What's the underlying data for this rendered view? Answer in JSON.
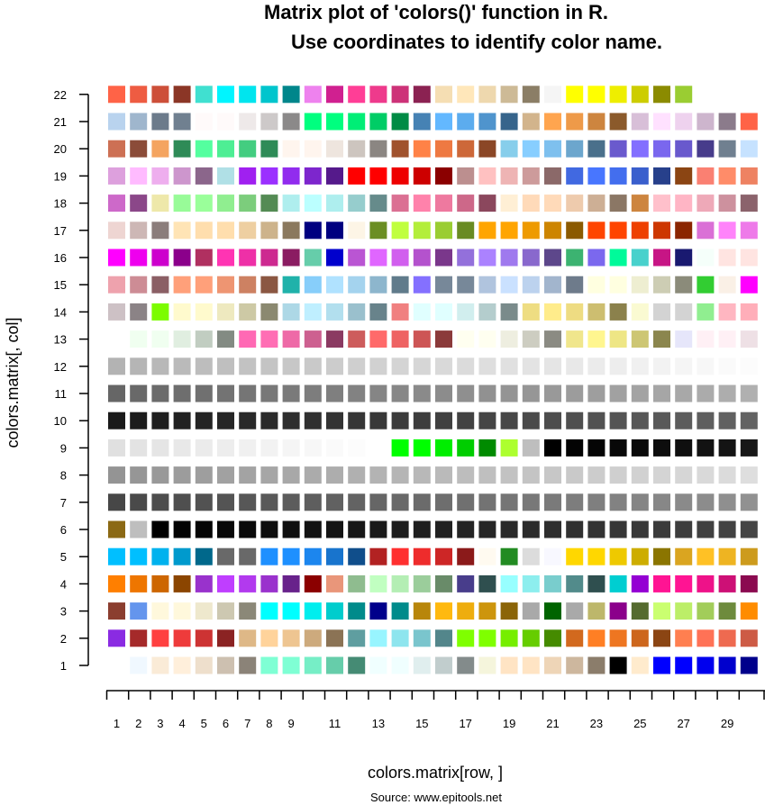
{
  "chart_data": {
    "type": "heatmap",
    "title_line1": "Matrix plot of 'colors()' function in R.",
    "title_line2": "Use coordinates to identify color name.",
    "xlabel": "colors.matrix[row, ]",
    "ylabel": "colors.matrix[, col]",
    "source": "Source: www.epitools.net",
    "x_range": [
      1,
      30
    ],
    "y_range": [
      1,
      22
    ],
    "x_tick_labels": [
      "1",
      "2",
      "3",
      "4",
      "5",
      "6",
      "7",
      "8",
      "9",
      "11",
      "13",
      "15",
      "17",
      "19",
      "21",
      "23",
      "25",
      "27",
      "29"
    ],
    "y_tick_labels": [
      "1",
      "2",
      "3",
      "4",
      "5",
      "6",
      "7",
      "8",
      "9",
      "10",
      "11",
      "12",
      "13",
      "14",
      "15",
      "16",
      "17",
      "18",
      "19",
      "20",
      "21",
      "22"
    ],
    "grid": false,
    "legend": "none",
    "rows": [
      {
        "y": 1,
        "colors": [
          "#FFFFFF",
          "#F0F8FF",
          "#FAEBD7",
          "#FFEFDB",
          "#EEDFCC",
          "#CDC0B0",
          "#8B8378",
          "#7FFFD4",
          "#7FFFD4",
          "#76EEC6",
          "#66CDAA",
          "#458B74",
          "#F0FFFF",
          "#F0FFFF",
          "#E0EEEE",
          "#C1CDCD",
          "#838B8B",
          "#F5F5DC",
          "#FFE4C4",
          "#FFE4C4",
          "#EED5B7",
          "#CDB79E",
          "#8B7D6B",
          "#000000",
          "#FFEBCD",
          "#0000FF",
          "#0000FF",
          "#0000EE",
          "#0000CD",
          "#00008B"
        ]
      },
      {
        "y": 2,
        "colors": [
          "#8A2BE2",
          "#A52A2A",
          "#FF4040",
          "#EE3B3B",
          "#CD3333",
          "#8B2323",
          "#DEB887",
          "#FFD39B",
          "#EEC591",
          "#CDAA7D",
          "#8B7355",
          "#5F9EA0",
          "#98F5FF",
          "#8EE5EE",
          "#7AC5CD",
          "#53868B",
          "#7FFF00",
          "#7FFF00",
          "#76EE00",
          "#66CD00",
          "#458B00",
          "#D2691E",
          "#FF7F24",
          "#EE7621",
          "#CD661D",
          "#8B4513",
          "#FF7F50",
          "#FF7256",
          "#EE6A50",
          "#CD5B45"
        ]
      },
      {
        "y": 3,
        "colors": [
          "#8B3E2F",
          "#6495ED",
          "#FFF8DC",
          "#FFF8DC",
          "#EEE8CD",
          "#CDC8B1",
          "#8B8878",
          "#00FFFF",
          "#00FFFF",
          "#00EEEE",
          "#00CDCD",
          "#008B8B",
          "#00008B",
          "#008B8B",
          "#B8860B",
          "#FFB90F",
          "#EEAD0E",
          "#CD950C",
          "#8B6508",
          "#A9A9A9",
          "#006400",
          "#A9A9A9",
          "#BDB76B",
          "#8B008B",
          "#556B2F",
          "#CAFF70",
          "#BCEE68",
          "#A2CD5A",
          "#6E8B3D",
          "#FF8C00"
        ]
      },
      {
        "y": 4,
        "colors": [
          "#FF7F00",
          "#EE7600",
          "#CD6600",
          "#8B4500",
          "#9932CC",
          "#BF3EFF",
          "#B23AEE",
          "#9A32CD",
          "#68228B",
          "#8B0000",
          "#E9967A",
          "#8FBC8F",
          "#C1FFC1",
          "#B4EEB4",
          "#9BCD9B",
          "#698B69",
          "#483D8B",
          "#2F4F4F",
          "#97FFFF",
          "#8DEEEE",
          "#79CDCD",
          "#528B8B",
          "#2F4F4F",
          "#00CED1",
          "#9400D3",
          "#FF1493",
          "#FF1493",
          "#EE1289",
          "#CD1076",
          "#8B0A50"
        ]
      },
      {
        "y": 5,
        "colors": [
          "#00BFFF",
          "#00BFFF",
          "#00B2EE",
          "#009ACD",
          "#00688B",
          "#696969",
          "#696969",
          "#1E90FF",
          "#1E90FF",
          "#1C86EE",
          "#1874CD",
          "#104E8B",
          "#B22222",
          "#FF3030",
          "#EE2C2C",
          "#CD2626",
          "#8B1A1A",
          "#FFFAF0",
          "#228B22",
          "#DCDCDC",
          "#F8F8FF",
          "#FFD700",
          "#FFD700",
          "#EEC900",
          "#CDAD00",
          "#8B7500",
          "#DAA520",
          "#FFC125",
          "#EEB422",
          "#CD9B1D"
        ]
      },
      {
        "y": 6,
        "colors": [
          "#8B6914",
          "#BEBEBE",
          "#000000",
          "#030303",
          "#050505",
          "#080808",
          "#0A0A0A",
          "#0D0D0D",
          "#0F0F0F",
          "#121212",
          "#141414",
          "#171717",
          "#1A1A1A",
          "#1C1C1C",
          "#1F1F1F",
          "#212121",
          "#242424",
          "#262626",
          "#292929",
          "#2B2B2B",
          "#2E2E2E",
          "#303030",
          "#333333",
          "#363636",
          "#383838",
          "#3B3B3B",
          "#3D3D3D",
          "#404040",
          "#424242",
          "#454545"
        ]
      },
      {
        "y": 7,
        "colors": [
          "#474747",
          "#4A4A4A",
          "#4D4D4D",
          "#4F4F4F",
          "#525252",
          "#545454",
          "#575757",
          "#595959",
          "#5C5C5C",
          "#5E5E5E",
          "#616161",
          "#636363",
          "#666666",
          "#696969",
          "#6B6B6B",
          "#6E6E6E",
          "#707070",
          "#737373",
          "#757575",
          "#787878",
          "#7A7A7A",
          "#7D7D7D",
          "#7F7F7F",
          "#828282",
          "#858585",
          "#878787",
          "#8A8A8A",
          "#8C8C8C",
          "#8F8F8F",
          "#919191"
        ]
      },
      {
        "y": 8,
        "colors": [
          "#949494",
          "#969696",
          "#999999",
          "#9C9C9C",
          "#9E9E9E",
          "#A1A1A1",
          "#A3A3A3",
          "#A6A6A6",
          "#A8A8A8",
          "#ABABAB",
          "#ADADAD",
          "#B0B0B0",
          "#B3B3B3",
          "#B5B5B5",
          "#B8B8B8",
          "#BABABA",
          "#BDBDBD",
          "#BFBFBF",
          "#C2C2C2",
          "#C4C4C4",
          "#C7C7C7",
          "#C9C9C9",
          "#CCCCCC",
          "#CFCFCF",
          "#D1D1D1",
          "#D4D4D4",
          "#D6D6D6",
          "#D9D9D9",
          "#DBDBDB",
          "#DEDEDE"
        ]
      },
      {
        "y": 9,
        "colors": [
          "#E0E0E0",
          "#E3E3E3",
          "#E5E5E5",
          "#E8E8E8",
          "#EBEBEB",
          "#EDEDED",
          "#F0F0F0",
          "#F2F2F2",
          "#F5F5F5",
          "#F7F7F7",
          "#FAFAFA",
          "#FCFCFC",
          "#FFFFFF",
          "#00FF00",
          "#00FF00",
          "#00EE00",
          "#00CD00",
          "#008B00",
          "#ADFF2F",
          "#BEBEBE",
          "#000000",
          "#030303",
          "#050505",
          "#080808",
          "#0A0A0A",
          "#0D0D0D",
          "#0F0F0F",
          "#121212",
          "#141414",
          "#171717"
        ]
      },
      {
        "y": 10,
        "colors": [
          "#1A1A1A",
          "#1C1C1C",
          "#1F1F1F",
          "#212121",
          "#242424",
          "#262626",
          "#292929",
          "#2B2B2B",
          "#2E2E2E",
          "#303030",
          "#333333",
          "#363636",
          "#383838",
          "#3B3B3B",
          "#3D3D3D",
          "#404040",
          "#424242",
          "#454545",
          "#474747",
          "#4A4A4A",
          "#4D4D4D",
          "#4F4F4F",
          "#525252",
          "#545454",
          "#575757",
          "#595959",
          "#5C5C5C",
          "#5E5E5E",
          "#616161",
          "#636363"
        ]
      },
      {
        "y": 11,
        "colors": [
          "#666666",
          "#696969",
          "#6B6B6B",
          "#6E6E6E",
          "#707070",
          "#737373",
          "#757575",
          "#787878",
          "#7A7A7A",
          "#7D7D7D",
          "#7F7F7F",
          "#828282",
          "#858585",
          "#878787",
          "#8A8A8A",
          "#8C8C8C",
          "#8F8F8F",
          "#919191",
          "#949494",
          "#969696",
          "#999999",
          "#9C9C9C",
          "#9E9E9E",
          "#A1A1A1",
          "#A3A3A3",
          "#A6A6A6",
          "#A8A8A8",
          "#ABABAB",
          "#ADADAD",
          "#B0B0B0"
        ]
      },
      {
        "y": 12,
        "colors": [
          "#B3B3B3",
          "#B5B5B5",
          "#B8B8B8",
          "#BABABA",
          "#BDBDBD",
          "#BFBFBF",
          "#C2C2C2",
          "#C4C4C4",
          "#C7C7C7",
          "#C9C9C9",
          "#CCCCCC",
          "#CFCFCF",
          "#D1D1D1",
          "#D4D4D4",
          "#D6D6D6",
          "#D9D9D9",
          "#DBDBDB",
          "#DEDEDE",
          "#E0E0E0",
          "#E3E3E3",
          "#E5E5E5",
          "#E8E8E8",
          "#EBEBEB",
          "#EDEDED",
          "#F0F0F0",
          "#F2F2F2",
          "#F5F5F5",
          "#F7F7F7",
          "#FAFAFA",
          "#FCFCFC"
        ]
      },
      {
        "y": 13,
        "colors": [
          "#FFFFFF",
          "#F0FFF0",
          "#F0FFF0",
          "#E0EEE0",
          "#C1CDC1",
          "#838B83",
          "#FF69B4",
          "#FF6EB4",
          "#EE6AA7",
          "#CD6090",
          "#8B3A62",
          "#CD5C5C",
          "#FF6A6A",
          "#EE6363",
          "#CD5555",
          "#8B3A3A",
          "#FFFFF0",
          "#FFFFF0",
          "#EEEEE0",
          "#CDCDC1",
          "#8B8B83",
          "#F0E68C",
          "#FFF68F",
          "#EEE685",
          "#CDC673",
          "#8B864E",
          "#E6E6FA",
          "#FFF0F5",
          "#FFF0F5",
          "#EEE0E5"
        ]
      },
      {
        "y": 14,
        "colors": [
          "#CDC1C5",
          "#8B8386",
          "#7CFC00",
          "#FFFACD",
          "#FFFACD",
          "#EEE9BF",
          "#CDC9A5",
          "#8B8970",
          "#ADD8E6",
          "#BFEFFF",
          "#B2DFEE",
          "#9AC0CD",
          "#68838B",
          "#F08080",
          "#E0FFFF",
          "#E0FFFF",
          "#D1EEEE",
          "#B4CDCD",
          "#7A8B8B",
          "#EEDD82",
          "#FFEC8B",
          "#EEDC82",
          "#CDBE70",
          "#8B814C",
          "#FAFAD2",
          "#D3D3D3",
          "#D3D3D3",
          "#90EE90",
          "#FFB6C1",
          "#FFAEB9"
        ]
      },
      {
        "y": 15,
        "colors": [
          "#EEA2AD",
          "#CD8C95",
          "#8B5F65",
          "#FFA07A",
          "#FFA07A",
          "#EE9572",
          "#CD8162",
          "#8B5742",
          "#20B2AA",
          "#87CEFA",
          "#B0E2FF",
          "#A4D3EE",
          "#8DB6CD",
          "#607B8B",
          "#8470FF",
          "#778899",
          "#778899",
          "#B0C4DE",
          "#CAE1FF",
          "#BCD2EE",
          "#A2B5CD",
          "#6E7B8B",
          "#FFFFE0",
          "#FFFFE0",
          "#EEEED1",
          "#CDCDB4",
          "#8B8B7A",
          "#32CD32",
          "#FAF0E6",
          "#FF00FF"
        ]
      },
      {
        "y": 16,
        "colors": [
          "#FF00FF",
          "#EE00EE",
          "#CD00CD",
          "#8B008B",
          "#B03060",
          "#FF34B3",
          "#EE30A7",
          "#CD2990",
          "#8B1C62",
          "#66CDAA",
          "#0000CD",
          "#BA55D3",
          "#E066FF",
          "#D15FEE",
          "#B452CD",
          "#7A378B",
          "#9370DB",
          "#AB82FF",
          "#9F79EE",
          "#8968CD",
          "#5D478B",
          "#3CB371",
          "#7B68EE",
          "#00FA9A",
          "#48D1CC",
          "#C71585",
          "#191970",
          "#F5FFFA",
          "#FFE4E1",
          "#FFE4E1"
        ]
      },
      {
        "y": 17,
        "colors": [
          "#EED5D2",
          "#CDB7B5",
          "#8B7D7B",
          "#FFE4B5",
          "#FFDEAD",
          "#FFDEAD",
          "#EECFA1",
          "#CDB38B",
          "#8B795E",
          "#000080",
          "#000080",
          "#FDF5E6",
          "#6B8E23",
          "#C0FF3E",
          "#B3EE3A",
          "#9ACD32",
          "#698B22",
          "#FFA500",
          "#FFA500",
          "#EE9A00",
          "#CD8500",
          "#8B5A00",
          "#FF4500",
          "#FF4500",
          "#EE4000",
          "#CD3700",
          "#8B2500",
          "#DA70D6",
          "#FF83FA",
          "#EE7AE9"
        ]
      },
      {
        "y": 18,
        "colors": [
          "#CD69C9",
          "#8B4789",
          "#EEE8AA",
          "#98FB98",
          "#9AFF9A",
          "#90EE90",
          "#7CCD7C",
          "#548B54",
          "#AFEEEE",
          "#BBFFFF",
          "#AEEEEE",
          "#96CDCD",
          "#668B8B",
          "#DB7093",
          "#FF82AB",
          "#EE799F",
          "#CD6889",
          "#8B475D",
          "#FFEFD5",
          "#FFDAB9",
          "#FFDAB9",
          "#EECBAD",
          "#CDAF95",
          "#8B7765",
          "#CD853F",
          "#FFC0CB",
          "#FFB5C5",
          "#EEA9B8",
          "#CD919E",
          "#8B636C"
        ]
      },
      {
        "y": 19,
        "colors": [
          "#DDA0DD",
          "#FFBBFF",
          "#EEAEEE",
          "#CD96CD",
          "#8B668B",
          "#B0E0E6",
          "#A020F0",
          "#9B30FF",
          "#912CEE",
          "#7D26CD",
          "#551A8B",
          "#FF0000",
          "#FF0000",
          "#EE0000",
          "#CD0000",
          "#8B0000",
          "#BC8F8F",
          "#FFC1C1",
          "#EEB4B4",
          "#CD9B9B",
          "#8B6969",
          "#4169E1",
          "#4876FF",
          "#436EEE",
          "#3A5FCD",
          "#27408B",
          "#8B4513",
          "#FA8072",
          "#FF8C69",
          "#EE8262"
        ]
      },
      {
        "y": 20,
        "colors": [
          "#CD7054",
          "#8B4C39",
          "#F4A460",
          "#2E8B57",
          "#54FF9F",
          "#4EEE94",
          "#43CD80",
          "#2E8B57",
          "#FFF5EE",
          "#FFF5EE",
          "#EEE5DE",
          "#CDC5BF",
          "#8B8682",
          "#A0522D",
          "#FF8247",
          "#EE7942",
          "#CD6839",
          "#8B4726",
          "#87CEEB",
          "#87CEFF",
          "#7EC0EE",
          "#6CA6CD",
          "#4A708B",
          "#6A5ACD",
          "#836FFF",
          "#7A67EE",
          "#6959CD",
          "#473C8B",
          "#708090",
          "#C6E2FF"
        ]
      },
      {
        "y": 21,
        "colors": [
          "#B9D3EE",
          "#9FB6CD",
          "#6C7B8B",
          "#708090",
          "#FFFAFA",
          "#FFFAFA",
          "#EEE9E9",
          "#CDC9C9",
          "#8B8989",
          "#00FF7F",
          "#00FF7F",
          "#00EE76",
          "#00CD66",
          "#008B45",
          "#4682B4",
          "#63B8FF",
          "#5CACEE",
          "#4F94CD",
          "#36648B",
          "#D2B48C",
          "#FFA54F",
          "#EE9A49",
          "#CD853F",
          "#8B5A2B",
          "#D8BFD8",
          "#FFE1FF",
          "#EED2EE",
          "#CDB5CD",
          "#8B7B8B",
          "#FF6347"
        ]
      },
      {
        "y": 22,
        "colors": [
          "#FF6347",
          "#EE5C42",
          "#CD4F39",
          "#8B3626",
          "#40E0D0",
          "#00F5FF",
          "#00E5EE",
          "#00C5CD",
          "#00868B",
          "#EE82EE",
          "#D02090",
          "#FF3E96",
          "#EE3A8C",
          "#CD3278",
          "#8B2252",
          "#F5DEB3",
          "#FFE7BA",
          "#EED8AE",
          "#CDBA96",
          "#8B7E66",
          "#F5F5F5",
          "#FFFF00",
          "#FFFF00",
          "#EEEE00",
          "#CDCD00",
          "#8B8B00",
          "#9ACD32"
        ]
      }
    ]
  }
}
